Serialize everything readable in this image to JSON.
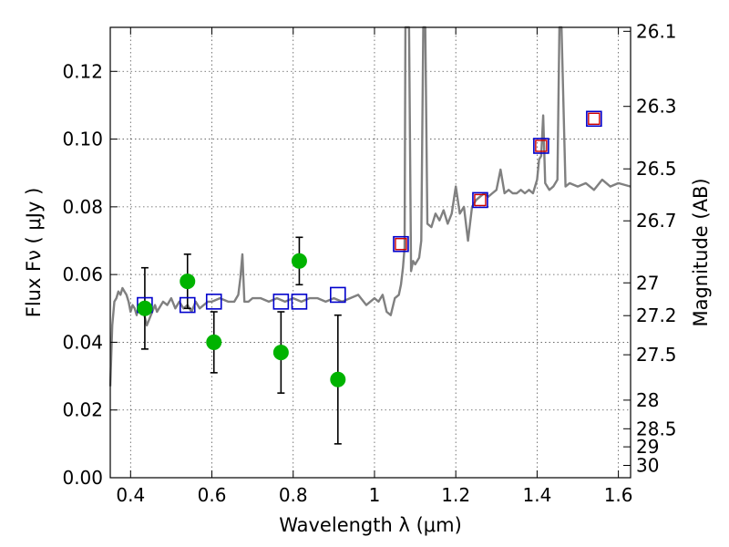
{
  "chart_data": {
    "type": "scatter",
    "xlabel": "Wavelength  λ (μm)",
    "ylabel": "Flux  Fν  ( μJy )",
    "ylabel_right": "Magnitude (AB)",
    "xlim": [
      0.35,
      1.63
    ],
    "ylim": [
      0.0,
      0.133
    ],
    "grid": true,
    "x_ticks": [
      0.4,
      0.6,
      0.8,
      1.0,
      1.2,
      1.4,
      1.6
    ],
    "x_tick_labels": [
      "0.4",
      "0.6",
      "0.8",
      "1",
      "1.2",
      "1.4",
      "1.6"
    ],
    "y_ticks": [
      0.0,
      0.02,
      0.04,
      0.06,
      0.08,
      0.1,
      0.12
    ],
    "y_tick_labels": [
      "0.00",
      "0.02",
      "0.04",
      "0.06",
      "0.08",
      "0.10",
      "0.12"
    ],
    "right_ticks": [
      {
        "mag": 26.1,
        "label": "26.1"
      },
      {
        "mag": 26.3,
        "label": "26.3"
      },
      {
        "mag": 26.5,
        "label": "26.5"
      },
      {
        "mag": 26.7,
        "label": "26.7"
      },
      {
        "mag": 27.0,
        "label": "27"
      },
      {
        "mag": 27.2,
        "label": "27.2"
      },
      {
        "mag": 27.5,
        "label": "27.5"
      },
      {
        "mag": 28.0,
        "label": "28"
      },
      {
        "mag": 28.5,
        "label": "28.5"
      },
      {
        "mag": 29.0,
        "label": "29"
      },
      {
        "mag": 30.0,
        "label": "30"
      }
    ],
    "colors": {
      "template": "#808080",
      "observed": "#00b300",
      "model_blue": "#0000cc",
      "model_red": "#cc0000",
      "errorbar": "#000000",
      "grid": "#555555"
    },
    "series": [
      {
        "name": "template_spectrum",
        "kind": "line",
        "x": [
          0.35,
          0.355,
          0.36,
          0.365,
          0.37,
          0.375,
          0.38,
          0.385,
          0.39,
          0.395,
          0.4,
          0.405,
          0.41,
          0.415,
          0.42,
          0.43,
          0.44,
          0.45,
          0.46,
          0.465,
          0.47,
          0.48,
          0.49,
          0.5,
          0.51,
          0.52,
          0.53,
          0.54,
          0.55,
          0.56,
          0.57,
          0.58,
          0.59,
          0.6,
          0.62,
          0.64,
          0.655,
          0.66,
          0.665,
          0.67,
          0.675,
          0.68,
          0.69,
          0.7,
          0.72,
          0.74,
          0.76,
          0.78,
          0.8,
          0.82,
          0.84,
          0.86,
          0.88,
          0.9,
          0.92,
          0.94,
          0.96,
          0.98,
          1.0,
          1.01,
          1.02,
          1.03,
          1.04,
          1.05,
          1.06,
          1.065,
          1.07,
          1.074,
          1.076,
          1.08,
          1.085,
          1.09,
          1.095,
          1.1,
          1.11,
          1.115,
          1.12,
          1.125,
          1.13,
          1.14,
          1.15,
          1.16,
          1.17,
          1.18,
          1.19,
          1.2,
          1.21,
          1.22,
          1.23,
          1.24,
          1.25,
          1.26,
          1.27,
          1.28,
          1.29,
          1.3,
          1.31,
          1.32,
          1.33,
          1.34,
          1.35,
          1.36,
          1.37,
          1.38,
          1.39,
          1.4,
          1.405,
          1.41,
          1.415,
          1.42,
          1.43,
          1.44,
          1.45,
          1.455,
          1.46,
          1.47,
          1.48,
          1.5,
          1.52,
          1.54,
          1.56,
          1.58,
          1.6,
          1.63
        ],
        "y": [
          0.027,
          0.045,
          0.052,
          0.053,
          0.055,
          0.054,
          0.056,
          0.055,
          0.054,
          0.052,
          0.049,
          0.051,
          0.05,
          0.048,
          0.051,
          0.05,
          0.045,
          0.048,
          0.051,
          0.049,
          0.05,
          0.052,
          0.051,
          0.053,
          0.05,
          0.052,
          0.05,
          0.051,
          0.049,
          0.052,
          0.05,
          0.051,
          0.052,
          0.052,
          0.053,
          0.052,
          0.052,
          0.053,
          0.054,
          0.059,
          0.066,
          0.052,
          0.052,
          0.053,
          0.053,
          0.052,
          0.053,
          0.052,
          0.053,
          0.052,
          0.053,
          0.053,
          0.052,
          0.053,
          0.052,
          0.053,
          0.054,
          0.051,
          0.053,
          0.052,
          0.054,
          0.049,
          0.048,
          0.053,
          0.054,
          0.057,
          0.062,
          0.068,
          0.133,
          0.133,
          0.133,
          0.061,
          0.064,
          0.063,
          0.065,
          0.07,
          0.133,
          0.133,
          0.075,
          0.074,
          0.078,
          0.076,
          0.079,
          0.075,
          0.078,
          0.086,
          0.078,
          0.08,
          0.07,
          0.08,
          0.082,
          0.083,
          0.084,
          0.083,
          0.084,
          0.085,
          0.091,
          0.084,
          0.085,
          0.084,
          0.084,
          0.085,
          0.084,
          0.085,
          0.084,
          0.088,
          0.094,
          0.095,
          0.107,
          0.087,
          0.085,
          0.086,
          0.088,
          0.133,
          0.133,
          0.086,
          0.087,
          0.086,
          0.087,
          0.085,
          0.088,
          0.086,
          0.087,
          0.086
        ]
      },
      {
        "name": "observed_photometry",
        "kind": "errorbar",
        "x": [
          0.435,
          0.54,
          0.605,
          0.77,
          0.815,
          0.91
        ],
        "y": [
          0.05,
          0.058,
          0.04,
          0.037,
          0.064,
          0.029
        ],
        "yerr": [
          0.012,
          0.008,
          0.009,
          0.012,
          0.007,
          0.019
        ]
      },
      {
        "name": "model_blue_squares",
        "kind": "marker",
        "x": [
          0.435,
          0.54,
          0.605,
          0.77,
          0.815,
          0.91,
          1.065,
          1.26,
          1.41,
          1.54
        ],
        "y": [
          0.051,
          0.051,
          0.052,
          0.052,
          0.052,
          0.054,
          0.069,
          0.082,
          0.098,
          0.106
        ]
      },
      {
        "name": "model_red_squares",
        "kind": "marker",
        "x": [
          1.065,
          1.26,
          1.41,
          1.54
        ],
        "y": [
          0.069,
          0.082,
          0.098,
          0.106
        ]
      }
    ]
  }
}
